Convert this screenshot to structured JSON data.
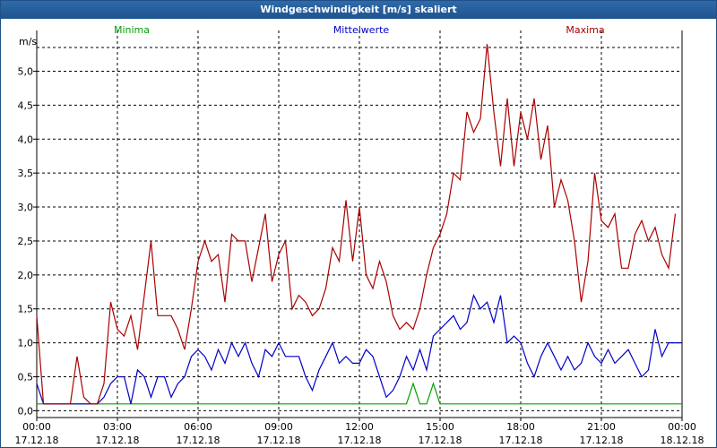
{
  "window": {
    "title": "Windgeschwindigkeit [m/s] skaliert"
  },
  "chart_data": {
    "type": "line",
    "title": "Windgeschwindigkeit [m/s] skaliert",
    "ylabel": "m/s",
    "ylim": [
      -0.1,
      5.6
    ],
    "xlim": [
      0,
      96
    ],
    "grid": true,
    "legend": "top",
    "yticks": [
      "0,0",
      "0,5",
      "1,0",
      "1,5",
      "2,0",
      "2,5",
      "3,0",
      "3,5",
      "4,0",
      "4,5",
      "5,0"
    ],
    "xticks": [
      {
        "time": "00:00",
        "date": "17.12.18"
      },
      {
        "time": "03:00",
        "date": "17.12.18"
      },
      {
        "time": "06:00",
        "date": "17.12.18"
      },
      {
        "time": "09:00",
        "date": "17.12.18"
      },
      {
        "time": "12:00",
        "date": "17.12.18"
      },
      {
        "time": "15:00",
        "date": "17.12.18"
      },
      {
        "time": "18:00",
        "date": "17.12.18"
      },
      {
        "time": "21:00",
        "date": "17.12.18"
      },
      {
        "time": "00:00",
        "date": "18.12.18"
      }
    ],
    "series": [
      {
        "name": "Minima",
        "color": "#00a000",
        "values": [
          0.1,
          0.1,
          0.1,
          0.1,
          0.1,
          0.1,
          0.1,
          0.1,
          0.1,
          0.1,
          0.1,
          0.1,
          0.1,
          0.1,
          0.1,
          0.1,
          0.1,
          0.1,
          0.1,
          0.1,
          0.1,
          0.1,
          0.1,
          0.1,
          0.1,
          0.1,
          0.1,
          0.1,
          0.1,
          0.1,
          0.1,
          0.1,
          0.1,
          0.1,
          0.1,
          0.1,
          0.1,
          0.1,
          0.1,
          0.1,
          0.1,
          0.1,
          0.1,
          0.1,
          0.1,
          0.1,
          0.1,
          0.1,
          0.1,
          0.1,
          0.1,
          0.1,
          0.1,
          0.1,
          0.1,
          0.1,
          0.4,
          0.1,
          0.1,
          0.4,
          0.1,
          0.1,
          0.1,
          0.1,
          0.1,
          0.1,
          0.1,
          0.1,
          0.1,
          0.1,
          0.1,
          0.1,
          0.1,
          0.1,
          0.1,
          0.1,
          0.1,
          0.1,
          0.1,
          0.1,
          0.1,
          0.1,
          0.1,
          0.1,
          0.1,
          0.1,
          0.1,
          0.1,
          0.1,
          0.1,
          0.1,
          0.1,
          0.1,
          0.1,
          0.1,
          0.1,
          0.1
        ]
      },
      {
        "name": "Mittelwerte",
        "color": "#0000c8",
        "values": [
          0.4,
          0.1,
          0.1,
          0.1,
          0.1,
          0.1,
          0.1,
          0.1,
          0.1,
          0.1,
          0.2,
          0.4,
          0.5,
          0.5,
          0.1,
          0.6,
          0.5,
          0.2,
          0.5,
          0.5,
          0.2,
          0.4,
          0.5,
          0.8,
          0.9,
          0.8,
          0.6,
          0.9,
          0.7,
          1.0,
          0.8,
          1.0,
          0.7,
          0.5,
          0.9,
          0.8,
          1.0,
          0.8,
          0.8,
          0.8,
          0.5,
          0.3,
          0.6,
          0.8,
          1.0,
          0.7,
          0.8,
          0.7,
          0.7,
          0.9,
          0.8,
          0.5,
          0.2,
          0.3,
          0.5,
          0.8,
          0.6,
          0.9,
          0.6,
          1.1,
          1.2,
          1.3,
          1.4,
          1.2,
          1.3,
          1.7,
          1.5,
          1.6,
          1.3,
          1.7,
          1.0,
          1.1,
          1.0,
          0.7,
          0.5,
          0.8,
          1.0,
          0.8,
          0.6,
          0.8,
          0.6,
          0.7,
          1.0,
          0.8,
          0.7,
          0.9,
          0.7,
          0.8,
          0.9,
          0.7,
          0.5,
          0.6,
          1.2,
          0.8,
          1.0,
          1.0,
          1.0
        ]
      },
      {
        "name": "Maxima",
        "color": "#aa0000",
        "values": [
          1.4,
          0.1,
          0.1,
          0.1,
          0.1,
          0.1,
          0.8,
          0.2,
          0.1,
          0.1,
          0.4,
          1.6,
          1.2,
          1.1,
          1.4,
          0.9,
          1.7,
          2.5,
          1.4,
          1.4,
          1.4,
          1.2,
          0.9,
          1.5,
          2.2,
          2.5,
          2.2,
          2.3,
          1.6,
          2.6,
          2.5,
          2.5,
          1.9,
          2.4,
          2.9,
          1.9,
          2.3,
          2.5,
          1.5,
          1.7,
          1.6,
          1.4,
          1.5,
          1.8,
          2.4,
          2.2,
          3.1,
          2.2,
          3.0,
          2.0,
          1.8,
          2.2,
          1.9,
          1.4,
          1.2,
          1.3,
          1.2,
          1.5,
          2.0,
          2.4,
          2.6,
          2.9,
          3.5,
          3.4,
          4.4,
          4.1,
          4.3,
          5.4,
          4.4,
          3.6,
          4.6,
          3.6,
          4.4,
          4.0,
          4.6,
          3.7,
          4.2,
          3.0,
          3.4,
          3.1,
          2.5,
          1.6,
          2.2,
          3.5,
          2.8,
          2.7,
          2.9,
          2.1,
          2.1,
          2.6,
          2.8,
          2.5,
          2.7,
          2.3,
          2.1,
          2.9
        ]
      }
    ]
  }
}
